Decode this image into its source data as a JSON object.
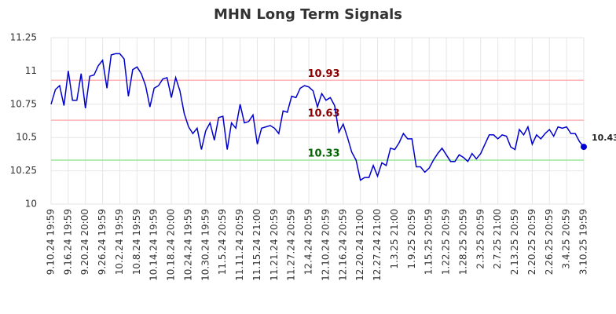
{
  "chart_data": {
    "type": "line",
    "title": "MHN Long Term Signals",
    "categories": [
      "9.10.24 19:59",
      null,
      null,
      null,
      "9.16.24 19:59",
      null,
      null,
      null,
      "9.20.24 20:00",
      null,
      null,
      null,
      "9.26.24 19:59",
      null,
      null,
      null,
      "10.2.24 19:59",
      null,
      null,
      null,
      "10.8.24 19:59",
      null,
      null,
      null,
      "10.14.24 19:59",
      null,
      null,
      null,
      "10.18.24 20:00",
      null,
      null,
      null,
      "10.24.24 19:59",
      null,
      null,
      null,
      "10.30.24 19:59",
      null,
      null,
      null,
      "11.5.24 20:59",
      null,
      null,
      null,
      "11.11.24 20:59",
      null,
      null,
      null,
      "11.15.24 21:00",
      null,
      null,
      null,
      "11.21.24 20:59",
      null,
      null,
      null,
      "11.27.24 20:59",
      null,
      null,
      null,
      "12.4.24 20:59",
      null,
      null,
      null,
      "12.10.24 20:59",
      null,
      null,
      null,
      "12.16.24 20:59",
      null,
      null,
      null,
      "12.20.24 21:00",
      null,
      null,
      null,
      "12.27.24 21:00",
      null,
      null,
      null,
      "1.3.25 21:00",
      null,
      null,
      null,
      "1.9.25 20:59",
      null,
      null,
      null,
      "1.15.25 20:59",
      null,
      null,
      null,
      "1.22.25 20:59",
      null,
      null,
      null,
      "1.28.25 20:59",
      null,
      null,
      null,
      "2.3.25 20:59",
      null,
      null,
      null,
      "2.7.25 21:00",
      null,
      null,
      null,
      "2.13.25 20:59",
      null,
      null,
      null,
      "2.20.25 20:59",
      null,
      null,
      null,
      "2.26.25 20:59",
      null,
      null,
      null,
      "3.4.25 20:59",
      null,
      null,
      null,
      "3.10.25 19:59"
    ],
    "series": [
      {
        "color": "#0000cc",
        "values": [
          10.75,
          10.86,
          10.89,
          10.74,
          11.0,
          10.78,
          10.78,
          10.98,
          10.72,
          10.96,
          10.97,
          11.04,
          11.08,
          10.87,
          11.12,
          11.13,
          11.13,
          11.09,
          10.81,
          11.01,
          11.03,
          10.98,
          10.89,
          10.73,
          10.87,
          10.89,
          10.94,
          10.95,
          10.8,
          10.95,
          10.85,
          10.68,
          10.58,
          10.53,
          10.57,
          10.41,
          10.55,
          10.61,
          10.48,
          10.65,
          10.66,
          10.41,
          10.61,
          10.57,
          10.75,
          10.61,
          10.62,
          10.67,
          10.45,
          10.57,
          10.58,
          10.59,
          10.57,
          10.53,
          10.7,
          10.69,
          10.81,
          10.8,
          10.87,
          10.89,
          10.88,
          10.85,
          10.73,
          10.83,
          10.78,
          10.8,
          10.74,
          10.54,
          10.6,
          10.5,
          10.39,
          10.33,
          10.18,
          10.2,
          10.2,
          10.29,
          10.21,
          10.31,
          10.29,
          10.42,
          10.41,
          10.46,
          10.53,
          10.49,
          10.49,
          10.28,
          10.28,
          10.24,
          10.27,
          10.33,
          10.38,
          10.42,
          10.37,
          10.32,
          10.32,
          10.37,
          10.35,
          10.32,
          10.38,
          10.34,
          10.38,
          10.45,
          10.52,
          10.52,
          10.49,
          10.52,
          10.51,
          10.43,
          10.41,
          10.56,
          10.52,
          10.58,
          10.45,
          10.52,
          10.49,
          10.53,
          10.56,
          10.51,
          10.58,
          10.57,
          10.58,
          10.53,
          10.53,
          10.47,
          10.43
        ]
      }
    ],
    "ylim": [
      10,
      11.25
    ],
    "yticks": [
      10,
      10.25,
      10.5,
      10.75,
      11,
      11.25
    ],
    "grid": true,
    "reference_lines": [
      {
        "value": 10.93,
        "color": "#ffb3b3",
        "label_color": "#8b0000"
      },
      {
        "value": 10.63,
        "color": "#ffb3b3",
        "label_color": "#8b0000"
      },
      {
        "value": 10.33,
        "color": "#99e699",
        "label_color": "#006400"
      }
    ]
  }
}
